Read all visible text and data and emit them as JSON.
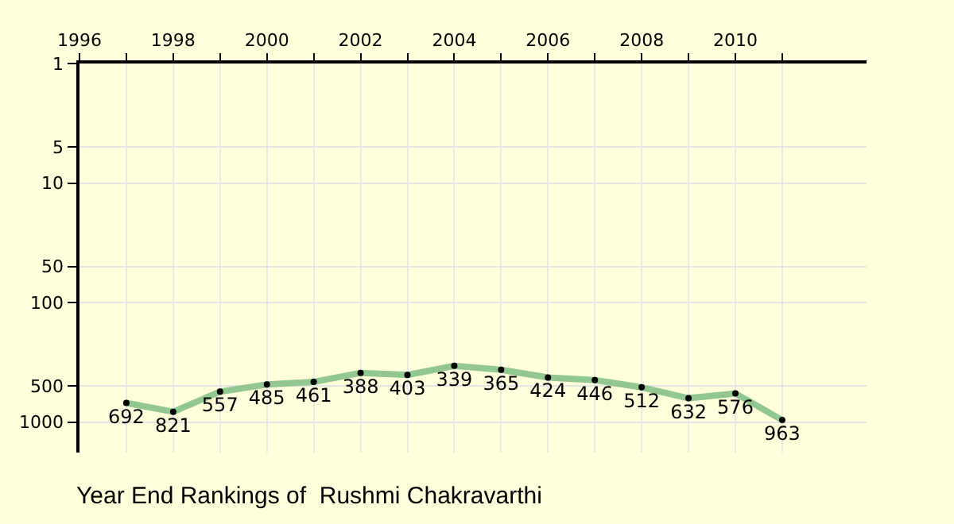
{
  "chart_data": {
    "type": "line",
    "title": "Year End Rankings of  Rushmi Chakravarthi",
    "x": [
      1997,
      1998,
      1999,
      2000,
      2001,
      2002,
      2003,
      2004,
      2005,
      2006,
      2007,
      2008,
      2009,
      2010,
      2011
    ],
    "series": [
      {
        "color": "#90c890",
        "values": [
          692,
          821,
          557,
          485,
          461,
          388,
          403,
          339,
          365,
          424,
          446,
          512,
          632,
          576,
          963
        ]
      }
    ],
    "data_labels": true,
    "marker": "circle",
    "line_style": "solid",
    "log": "y",
    "grid": true,
    "xlim": [
      1996,
      2012.8
    ],
    "xticks": [
      1996,
      {
        "value": 1997,
        "label": null
      },
      1998,
      {
        "value": 1999,
        "label": null
      },
      2000,
      {
        "value": 2001,
        "label": null
      },
      2002,
      {
        "value": 2003,
        "label": null
      },
      2004,
      {
        "value": 2005,
        "label": null
      },
      2006,
      {
        "value": 2007,
        "label": null
      },
      2008,
      {
        "value": 2009,
        "label": null
      },
      2010,
      {
        "value": 2011,
        "label": null
      }
    ],
    "ylim": [
      1800,
      1
    ],
    "yticks": [
      1,
      5,
      10,
      50,
      100,
      500,
      1000
    ]
  }
}
